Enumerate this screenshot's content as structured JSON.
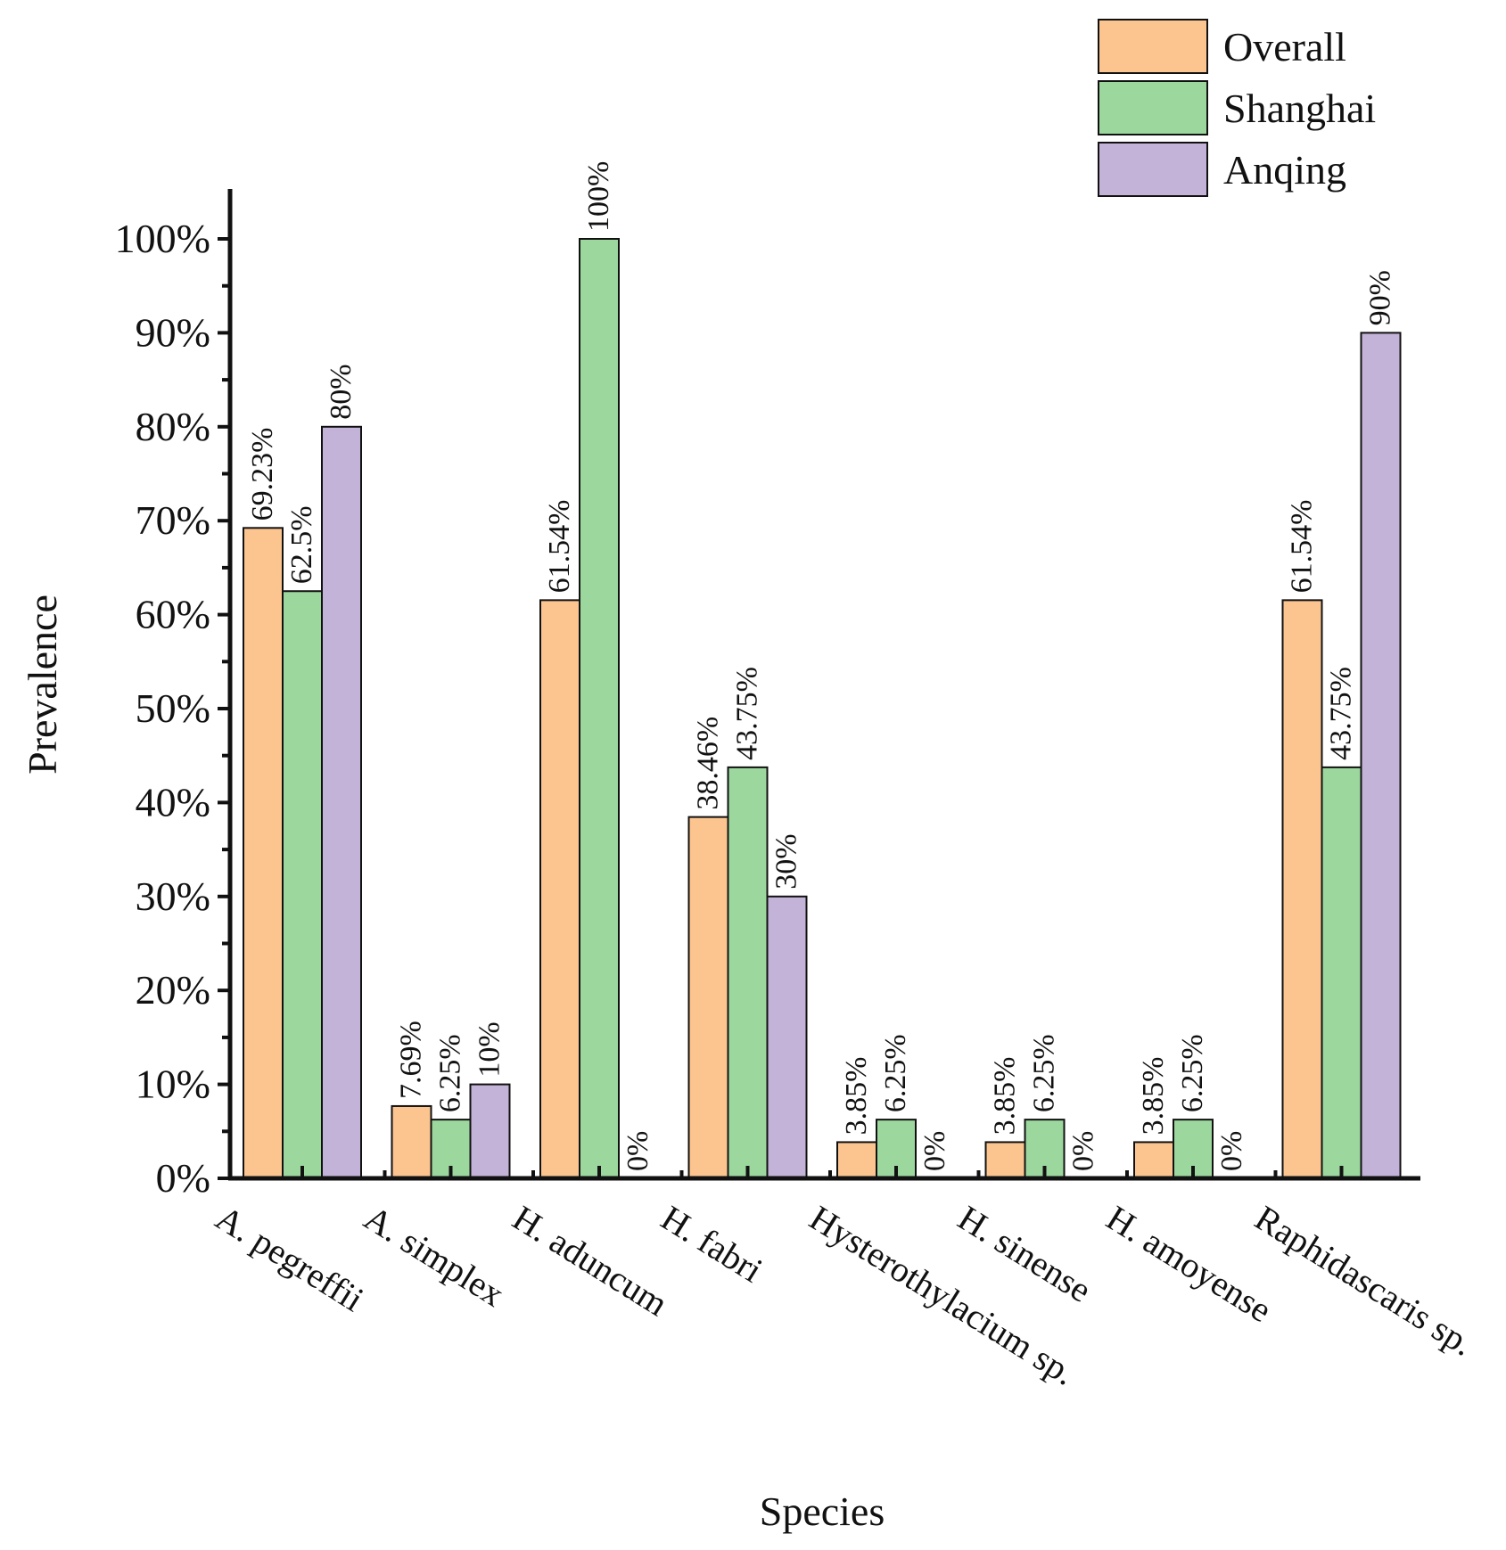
{
  "chart_data": {
    "type": "bar",
    "title": "",
    "xlabel": "Species",
    "ylabel": "Prevalence",
    "ylim": [
      0,
      100
    ],
    "yticks": [
      "0%",
      "10%",
      "20%",
      "30%",
      "40%",
      "50%",
      "60%",
      "70%",
      "80%",
      "90%",
      "100%"
    ],
    "categories": [
      "A. pegreffii",
      "A. simplex",
      "H. aduncum",
      "H. fabri",
      "Hysterothylacium sp.",
      "H. sinense",
      "H. amoyense",
      "Raphidascaris sp."
    ],
    "series": [
      {
        "name": "Overall",
        "color": "#FCC590",
        "values": [
          69.23,
          7.69,
          61.54,
          38.46,
          3.85,
          3.85,
          3.85,
          61.54
        ],
        "labels": [
          "69.23%",
          "7.69%",
          "61.54%",
          "38.46%",
          "3.85%",
          "3.85%",
          "3.85%",
          "61.54%"
        ]
      },
      {
        "name": "Shanghai",
        "color": "#9CD89E",
        "values": [
          62.5,
          6.25,
          100,
          43.75,
          6.25,
          6.25,
          6.25,
          43.75
        ],
        "labels": [
          "62.5%",
          "6.25%",
          "100%",
          "43.75%",
          "6.25%",
          "6.25%",
          "6.25%",
          "43.75%"
        ]
      },
      {
        "name": "Anqing",
        "color": "#C3B3D8",
        "values": [
          80,
          10,
          0,
          30,
          0,
          0,
          0,
          90
        ],
        "labels": [
          "80%",
          "10%",
          "0%",
          "30%",
          "0%",
          "0%",
          "0%",
          "90%"
        ]
      }
    ],
    "legend": "top-right",
    "grid": false
  }
}
